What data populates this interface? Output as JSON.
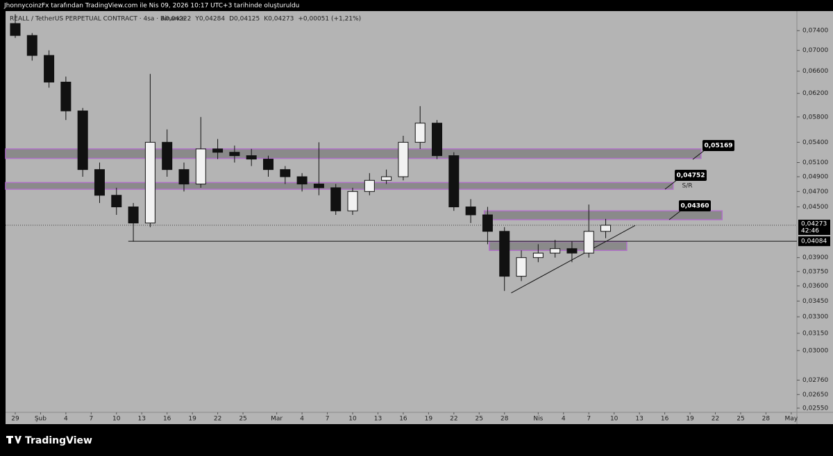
{
  "caption": "JhonnycoinzFx tarafından TradingView.com ile Nis 09, 2026 10:17 UTC+3 tarihinde oluşturuldu",
  "footer": {
    "brand": "TradingView"
  },
  "chart_data": {
    "type": "candlestick",
    "title": "REALL / TetherUS PERPETUAL CONTRACT · 4sa · Binance",
    "ohlc_text": [
      "A0,04222",
      "Y0,04284",
      "D0,04125",
      "K0,04273",
      "+0,00051 (+1,21%)"
    ],
    "color": "#111111",
    "log_scale": true,
    "x": [
      0,
      2,
      4,
      6,
      8,
      10,
      12,
      14,
      16,
      18,
      20,
      22,
      24,
      26,
      28,
      30,
      32,
      34,
      36,
      38,
      40,
      42,
      44,
      46,
      48,
      50,
      52,
      54,
      56,
      58,
      60,
      62,
      64,
      66,
      68,
      70
    ],
    "open": [
      0.0755,
      0.073,
      0.069,
      0.064,
      0.059,
      0.05,
      0.0465,
      0.045,
      0.043,
      0.054,
      0.05,
      0.048,
      0.053,
      0.0525,
      0.052,
      0.0515,
      0.05,
      0.049,
      0.048,
      0.0475,
      0.0445,
      0.047,
      0.0485,
      0.049,
      0.054,
      0.057,
      0.052,
      0.045,
      0.044,
      0.042,
      0.037,
      0.039,
      0.0395,
      0.04,
      0.0395,
      0.042
    ],
    "high": [
      0.0775,
      0.0735,
      0.07,
      0.065,
      0.0595,
      0.051,
      0.0475,
      0.0455,
      0.0655,
      0.056,
      0.051,
      0.058,
      0.0545,
      0.0535,
      0.053,
      0.052,
      0.0505,
      0.0495,
      0.054,
      0.048,
      0.0475,
      0.0495,
      0.05,
      0.055,
      0.0598,
      0.0575,
      0.0525,
      0.046,
      0.045,
      0.0425,
      0.0398,
      0.0405,
      0.041,
      0.0408,
      0.0453,
      0.0435
    ],
    "low": [
      0.0725,
      0.068,
      0.063,
      0.0575,
      0.049,
      0.0455,
      0.044,
      0.0408,
      0.0425,
      0.049,
      0.047,
      0.0475,
      0.0515,
      0.051,
      0.0505,
      0.049,
      0.048,
      0.047,
      0.0465,
      0.044,
      0.044,
      0.0465,
      0.048,
      0.0485,
      0.053,
      0.0515,
      0.0445,
      0.043,
      0.0405,
      0.0355,
      0.0365,
      0.0385,
      0.039,
      0.0385,
      0.039,
      0.0412
    ],
    "close": [
      0.073,
      0.069,
      0.064,
      0.059,
      0.05,
      0.0465,
      0.045,
      0.043,
      0.054,
      0.05,
      0.048,
      0.053,
      0.0525,
      0.052,
      0.0515,
      0.05,
      0.049,
      0.048,
      0.0475,
      0.0445,
      0.047,
      0.0485,
      0.049,
      0.054,
      0.057,
      0.052,
      0.045,
      0.044,
      0.042,
      0.037,
      0.039,
      0.0395,
      0.04,
      0.0395,
      0.042,
      0.04273
    ],
    "xlim": [
      -1.15,
      92.67
    ],
    "ylim": [
      0.0252,
      0.0782
    ],
    "xticks": [
      {
        "value": 0,
        "label": "29"
      },
      {
        "value": 3,
        "label": "Şub"
      },
      {
        "value": 6,
        "label": "4"
      },
      {
        "value": 9,
        "label": "7"
      },
      {
        "value": 12,
        "label": "10"
      },
      {
        "value": 15,
        "label": "13"
      },
      {
        "value": 18,
        "label": "16"
      },
      {
        "value": 21,
        "label": "19"
      },
      {
        "value": 24,
        "label": "22"
      },
      {
        "value": 27,
        "label": "25"
      },
      {
        "value": 31,
        "label": "Mar"
      },
      {
        "value": 34,
        "label": "4"
      },
      {
        "value": 37,
        "label": "7"
      },
      {
        "value": 40,
        "label": "10"
      },
      {
        "value": 43,
        "label": "13"
      },
      {
        "value": 46,
        "label": "16"
      },
      {
        "value": 49,
        "label": "19"
      },
      {
        "value": 52,
        "label": "22"
      },
      {
        "value": 55,
        "label": "25"
      },
      {
        "value": 58,
        "label": "28"
      },
      {
        "value": 62,
        "label": "Nis"
      },
      {
        "value": 65,
        "label": "4"
      },
      {
        "value": 68,
        "label": "7"
      },
      {
        "value": 71,
        "label": "10"
      },
      {
        "value": 74,
        "label": "13"
      },
      {
        "value": 77,
        "label": "16"
      },
      {
        "value": 80,
        "label": "19"
      },
      {
        "value": 83,
        "label": "22"
      },
      {
        "value": 86,
        "label": "25"
      },
      {
        "value": 89,
        "label": "28"
      },
      {
        "value": 92,
        "label": "May"
      }
    ],
    "yticks": [
      {
        "value": 0.074,
        "label": "0,07400"
      },
      {
        "value": 0.07,
        "label": "0,07000"
      },
      {
        "value": 0.066,
        "label": "0,06600"
      },
      {
        "value": 0.062,
        "label": "0,06200"
      },
      {
        "value": 0.058,
        "label": "0,05800"
      },
      {
        "value": 0.054,
        "label": "0,05400"
      },
      {
        "value": 0.051,
        "label": "0,05100"
      },
      {
        "value": 0.049,
        "label": "0,04900"
      },
      {
        "value": 0.047,
        "label": "0,04700"
      },
      {
        "value": 0.045,
        "label": "0,04500"
      },
      {
        "value": 0.039,
        "label": "0,03900"
      },
      {
        "value": 0.0375,
        "label": "0,03750"
      },
      {
        "value": 0.036,
        "label": "0,03600"
      },
      {
        "value": 0.0345,
        "label": "0,03450"
      },
      {
        "value": 0.033,
        "label": "0,03300"
      },
      {
        "value": 0.0315,
        "label": "0,03150"
      },
      {
        "value": 0.03,
        "label": "0,03000"
      },
      {
        "value": 0.0276,
        "label": "0,02760"
      },
      {
        "value": 0.0265,
        "label": "0,02650"
      },
      {
        "value": 0.0255,
        "label": "0,02550"
      }
    ],
    "zones": [
      {
        "low": 0.0516,
        "high": 0.053,
        "x": [
          -1.15,
          81.3
        ]
      },
      {
        "low": 0.0473,
        "high": 0.0482,
        "x": [
          -1.15,
          78.0
        ]
      },
      {
        "low": 0.0434,
        "high": 0.0445,
        "x": [
          55.6,
          83.8
        ]
      },
      {
        "low": 0.0398,
        "high": 0.0408,
        "x": [
          56.2,
          72.5
        ]
      }
    ],
    "callouts": [
      {
        "value": 0.05169,
        "label": "0,05169"
      },
      {
        "value": 0.04752,
        "label": "0,04752",
        "note": "S/R"
      },
      {
        "value": 0.0436,
        "label": "0,04360"
      }
    ],
    "support": {
      "value": 0.04084,
      "label": "0,04084",
      "x": 13.4
    },
    "trendline": {
      "x": [
        58.8,
        73.5
      ],
      "y": [
        0.0353,
        0.0427
      ]
    },
    "last_price": {
      "value": 0.04273,
      "label": "0,04273",
      "countdown": "42:46"
    }
  }
}
